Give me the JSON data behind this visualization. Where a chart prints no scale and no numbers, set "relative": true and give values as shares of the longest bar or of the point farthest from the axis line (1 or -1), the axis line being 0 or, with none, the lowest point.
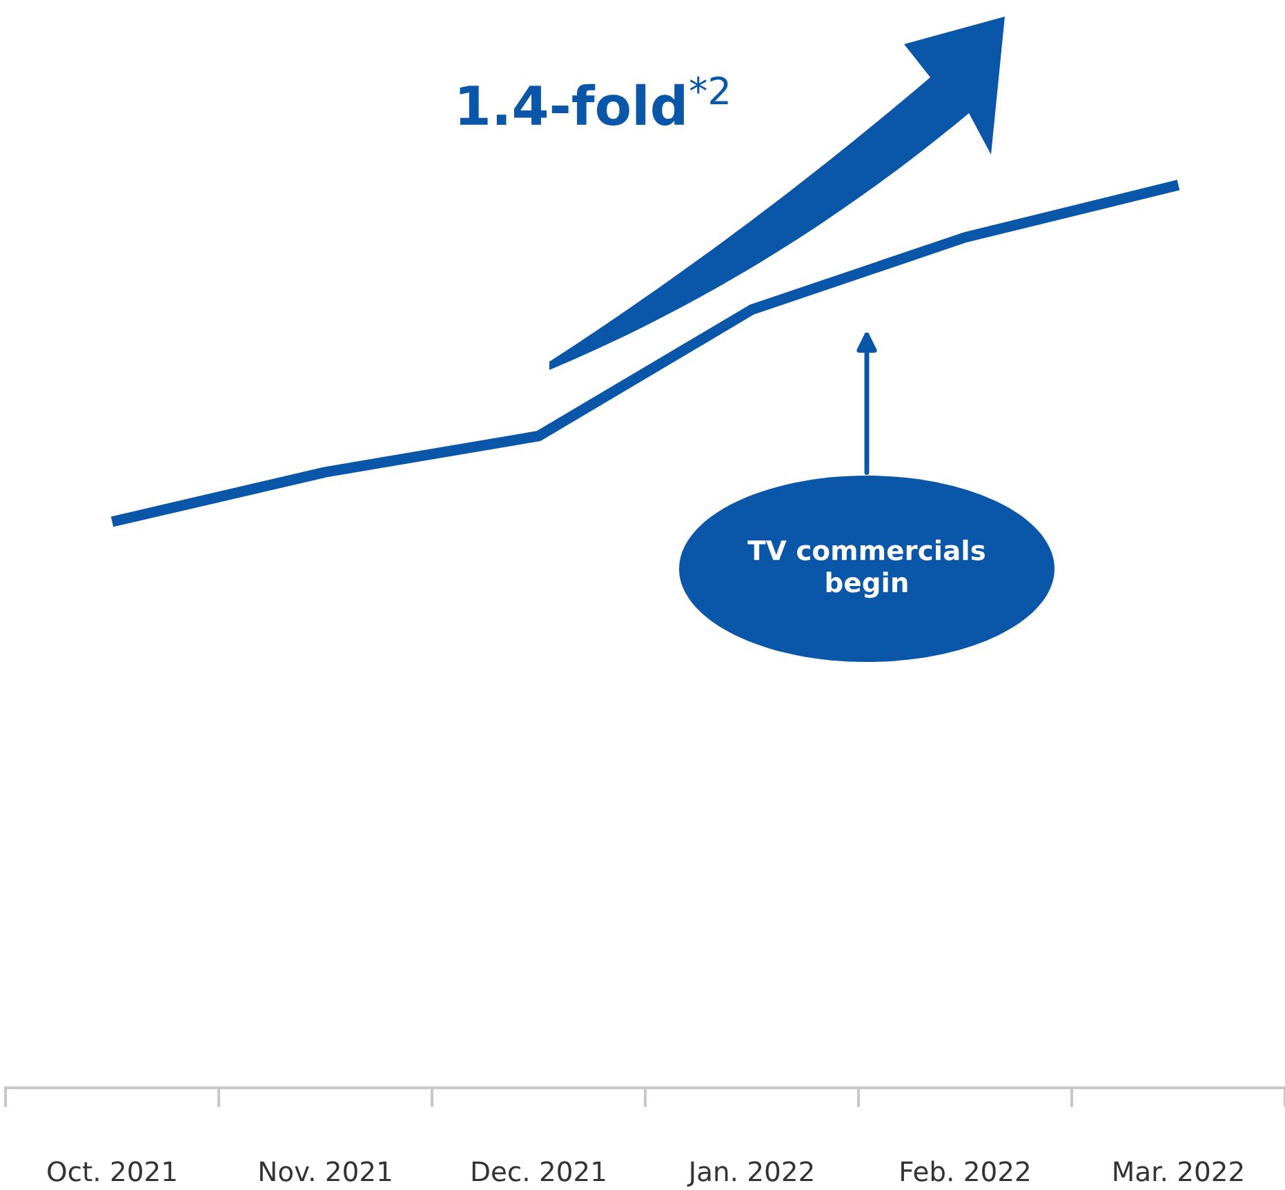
{
  "chart_data": {
    "type": "line",
    "relative": true,
    "categories": [
      "Oct. 2021",
      "Nov. 2021",
      "Dec. 2021",
      "Jan. 2022",
      "Feb. 2022",
      "Mar. 2022"
    ],
    "series": [
      {
        "color": "#0a56a8",
        "values": [
          0.627,
          0.682,
          0.722,
          0.862,
          0.942,
          1.0
        ]
      }
    ],
    "annotations": [
      "1.4-fold$^{*2}$",
      "TV commercials\nbegin"
    ],
    "grid": false,
    "legend": false,
    "marker": "none",
    "line_style": "solid"
  }
}
